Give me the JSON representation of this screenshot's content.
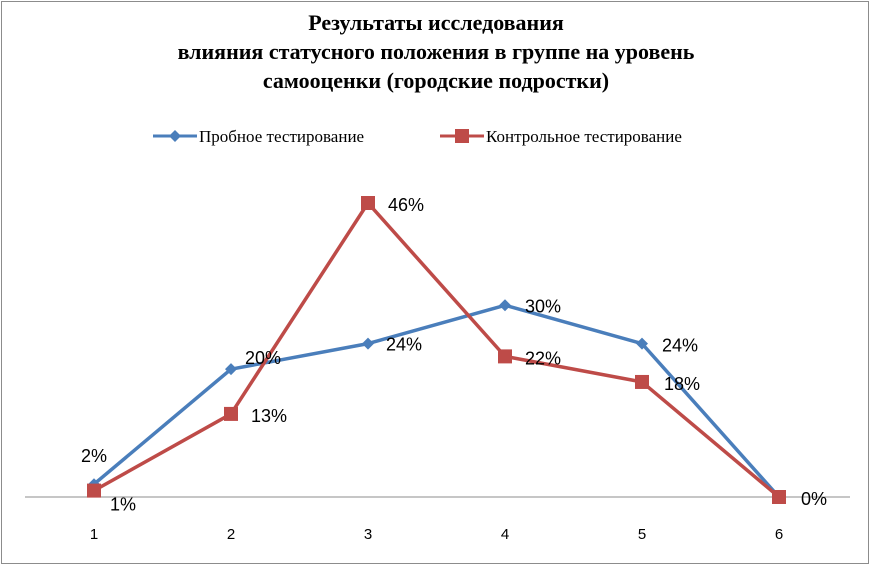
{
  "chart_data": {
    "type": "line",
    "title_lines": [
      "Результаты исследования",
      "влияния статусного положения в группе на уровень",
      "самооценки (городские подростки)"
    ],
    "xlabel": "",
    "ylabel": "",
    "categories": [
      "1",
      "2",
      "3",
      "4",
      "5",
      "6"
    ],
    "ylim": [
      0,
      46
    ],
    "grid": false,
    "legend_position": "top",
    "series": [
      {
        "name": "Пробное тестирование",
        "color": "#4a7ebb",
        "marker": "diamond",
        "values": [
          2,
          20,
          24,
          30,
          24,
          0
        ],
        "labels": [
          "2%",
          "20%",
          "24%",
          "30%",
          "24%",
          ""
        ]
      },
      {
        "name": "Контрольное тестирование",
        "color": "#be4b48",
        "marker": "square",
        "values": [
          1,
          13,
          46,
          22,
          18,
          0
        ],
        "labels": [
          "1%",
          "13%",
          "46%",
          "22%",
          "18%",
          "0%"
        ]
      }
    ]
  }
}
